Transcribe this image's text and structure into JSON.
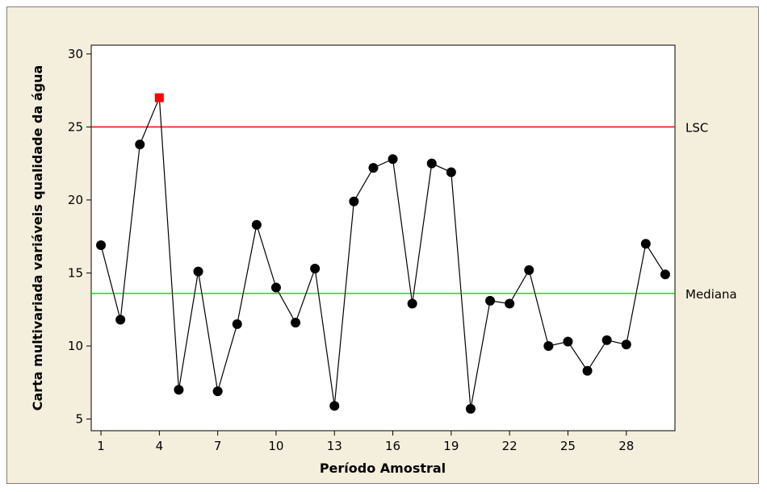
{
  "chart_data": {
    "type": "line",
    "title": "",
    "xlabel": "Período Amostral",
    "ylabel": "Carta multivariada variáveis qualidade da água",
    "xlim": [
      0.5,
      30.5
    ],
    "ylim": [
      4.2,
      30.6
    ],
    "x_ticks": [
      1,
      4,
      7,
      10,
      13,
      16,
      19,
      22,
      25,
      28
    ],
    "y_ticks": [
      5,
      10,
      15,
      20,
      25,
      30
    ],
    "grid": false,
    "series": [
      {
        "x": [
          1,
          2,
          3,
          4,
          5,
          6,
          7,
          8,
          9,
          10,
          11,
          12,
          13,
          14,
          15,
          16,
          17,
          18,
          19,
          20,
          21,
          22,
          23,
          24,
          25,
          26,
          27,
          28,
          29,
          30
        ],
        "values": [
          16.9,
          11.8,
          23.8,
          27.0,
          7.0,
          15.1,
          6.9,
          11.5,
          18.3,
          14.0,
          11.6,
          15.3,
          5.9,
          19.9,
          22.2,
          22.8,
          12.9,
          22.5,
          21.9,
          5.7,
          13.1,
          12.9,
          15.2,
          10.0,
          10.3,
          8.3,
          10.4,
          10.1,
          17.0,
          14.9
        ],
        "color": "#000000",
        "out_of_control_points": [
          4
        ],
        "out_of_control_color": "#ff0000"
      }
    ],
    "reference_lines": [
      {
        "label": "LSC",
        "value": 25.0,
        "color": "#ff0000"
      },
      {
        "label": "Mediana",
        "value": 13.6,
        "color": "#00ee00"
      }
    ]
  }
}
